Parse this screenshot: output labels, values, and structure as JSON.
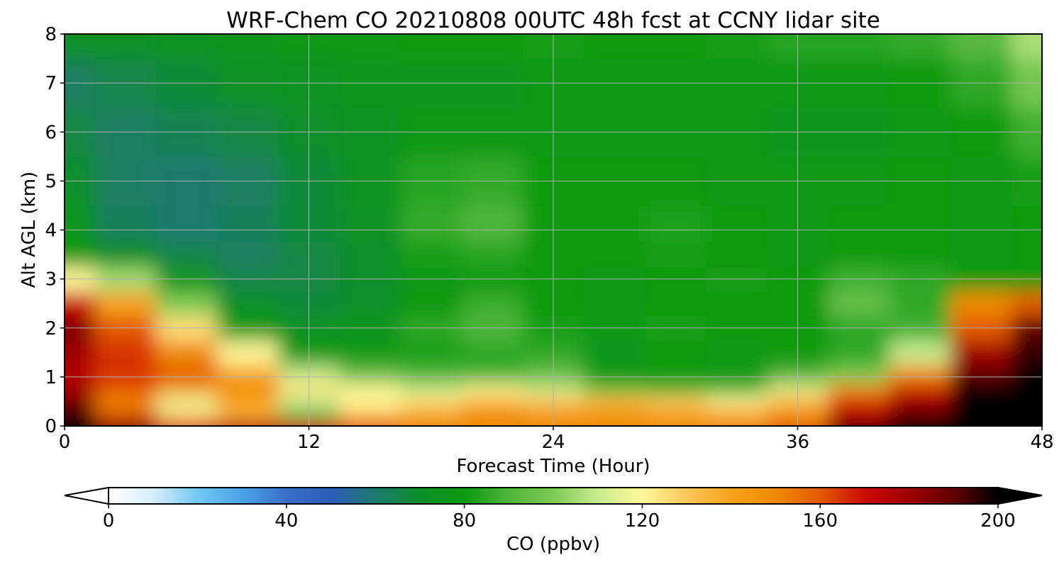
{
  "chart_data": {
    "type": "heatmap",
    "title": "WRF-Chem CO  20210808 00UTC 48h fcst at CCNY lidar site",
    "xlabel": "Forecast Time (Hour)",
    "ylabel": "Alt AGL (km)",
    "xlim": [
      0,
      48
    ],
    "ylim": [
      0,
      8
    ],
    "x_ticks": [
      "0",
      "12",
      "24",
      "36",
      "48"
    ],
    "y_ticks": [
      "0",
      "1",
      "2",
      "3",
      "4",
      "5",
      "6",
      "7",
      "8"
    ],
    "grid": true,
    "colorbar": {
      "label": "CO  (ppbv)",
      "range": [
        0,
        200
      ],
      "ticks": [
        "0",
        "40",
        "80",
        "120",
        "160",
        "200"
      ],
      "extend": "both",
      "colors": [
        "#ffffff",
        "#d6eefc",
        "#74c8f5",
        "#4aa3e6",
        "#3a6fc7",
        "#2d5bb8",
        "#1f7a6e",
        "#0a8f2a",
        "#0b9a10",
        "#4fb53a",
        "#7ecb55",
        "#c8eb8e",
        "#fff799",
        "#fdc75a",
        "#f7a21b",
        "#f08a00",
        "#e35a00",
        "#cc0a00",
        "#a00000",
        "#600000",
        "#000000"
      ]
    },
    "x_hours": [
      0,
      3,
      6,
      9,
      12,
      15,
      18,
      21,
      24,
      27,
      30,
      33,
      36,
      39,
      42,
      45,
      48
    ],
    "y_km": [
      0,
      0.25,
      0.5,
      0.75,
      1,
      1.5,
      2,
      2.5,
      3,
      3.5,
      4,
      5,
      6,
      7,
      8
    ],
    "values_ppbv": [
      [
        200,
        185,
        165,
        175,
        170,
        160,
        150,
        150,
        150,
        150,
        150,
        150,
        160,
        190,
        200,
        200,
        200
      ],
      [
        195,
        160,
        125,
        135,
        95,
        130,
        140,
        150,
        145,
        145,
        140,
        140,
        145,
        175,
        190,
        200,
        200
      ],
      [
        185,
        150,
        115,
        140,
        110,
        120,
        125,
        135,
        130,
        135,
        130,
        120,
        135,
        165,
        180,
        200,
        200
      ],
      [
        180,
        160,
        140,
        150,
        125,
        120,
        110,
        120,
        110,
        95,
        90,
        90,
        115,
        150,
        170,
        200,
        200
      ],
      [
        175,
        165,
        160,
        140,
        110,
        95,
        90,
        88,
        95,
        80,
        80,
        78,
        90,
        100,
        150,
        190,
        200
      ],
      [
        180,
        165,
        150,
        120,
        80,
        78,
        82,
        85,
        85,
        75,
        80,
        78,
        80,
        85,
        110,
        180,
        195
      ],
      [
        185,
        160,
        125,
        80,
        72,
        75,
        85,
        90,
        82,
        78,
        82,
        80,
        80,
        85,
        88,
        160,
        190
      ],
      [
        170,
        140,
        100,
        70,
        68,
        70,
        80,
        87,
        80,
        78,
        80,
        80,
        80,
        95,
        85,
        150,
        160
      ],
      [
        120,
        105,
        75,
        65,
        66,
        70,
        78,
        80,
        80,
        78,
        80,
        82,
        80,
        88,
        85,
        80,
        80
      ],
      [
        80,
        70,
        65,
        62,
        66,
        70,
        82,
        84,
        80,
        80,
        82,
        80,
        78,
        80,
        80,
        78,
        80
      ],
      [
        75,
        63,
        60,
        63,
        68,
        72,
        86,
        90,
        80,
        80,
        83,
        80,
        78,
        80,
        80,
        78,
        80
      ],
      [
        70,
        62,
        60,
        62,
        68,
        74,
        84,
        86,
        80,
        80,
        80,
        78,
        78,
        78,
        80,
        78,
        82
      ],
      [
        66,
        62,
        64,
        66,
        70,
        74,
        78,
        78,
        78,
        78,
        78,
        78,
        76,
        76,
        78,
        80,
        88
      ],
      [
        62,
        65,
        68,
        72,
        74,
        76,
        76,
        76,
        78,
        78,
        78,
        78,
        78,
        78,
        80,
        85,
        98
      ],
      [
        72,
        72,
        74,
        76,
        78,
        78,
        80,
        80,
        82,
        80,
        80,
        82,
        84,
        84,
        86,
        92,
        106
      ]
    ]
  }
}
